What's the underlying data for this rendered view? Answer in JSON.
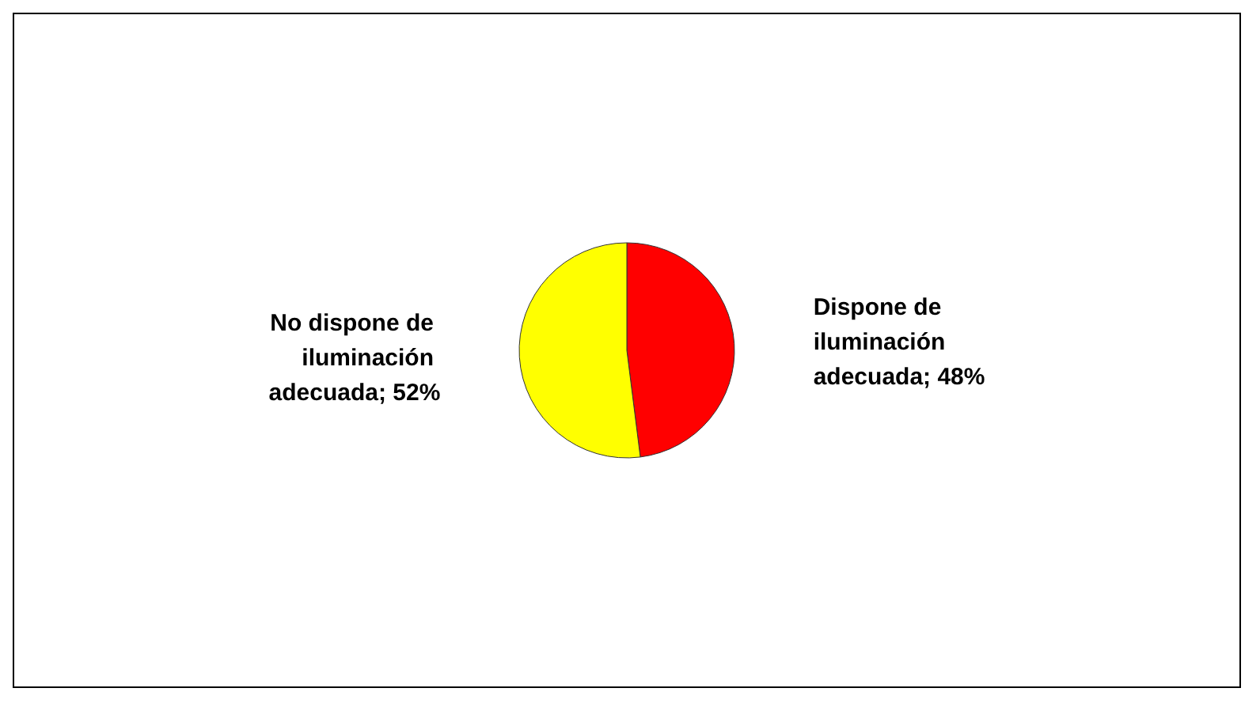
{
  "chart_data": {
    "type": "pie",
    "categories": [
      "Dispone de iluminación adecuada",
      "No dispone de iluminación adecuada"
    ],
    "values": [
      48,
      52
    ],
    "value_labels": [
      "48%",
      "52%"
    ],
    "colors": [
      "#ff0000",
      "#ffff00"
    ],
    "legend": false
  }
}
